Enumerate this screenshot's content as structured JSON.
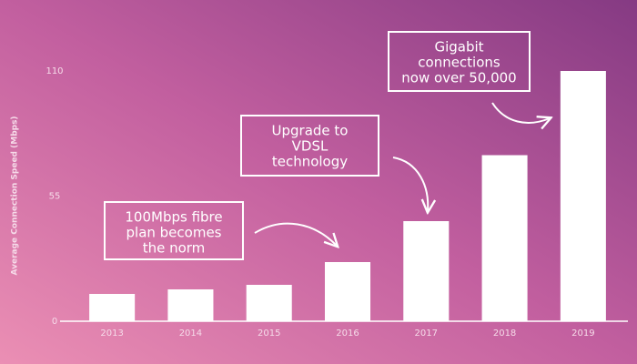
{
  "chart_data": {
    "type": "bar",
    "y_label": "Average Connection Speed (Mbps)",
    "categories": [
      "2013",
      "2014",
      "2015",
      "2016",
      "2017",
      "2018",
      "2019"
    ],
    "values": [
      12,
      14,
      16,
      26,
      44,
      73,
      110
    ],
    "color": "#ffffff",
    "ylim": [
      0,
      110
    ],
    "yticks": [
      0,
      55,
      110
    ],
    "grid": false,
    "annotations": [
      {
        "lines": [
          "100Mbps fibre",
          "plan becomes",
          "the norm"
        ]
      },
      {
        "lines": [
          "Upgrade to",
          "VDSL",
          "technology"
        ]
      },
      {
        "lines": [
          "Gigabit",
          "connections",
          "now over 50,000"
        ]
      }
    ]
  }
}
